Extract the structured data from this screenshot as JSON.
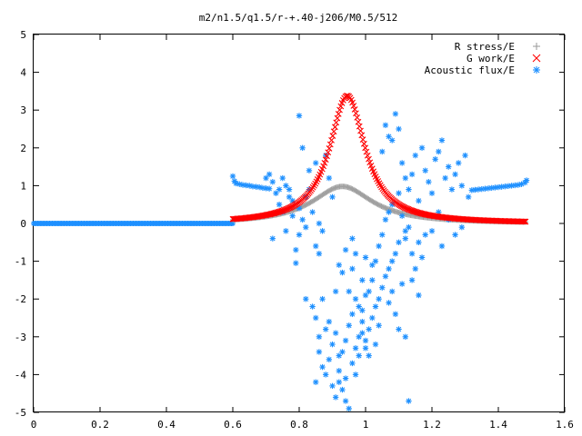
{
  "chart_data": {
    "type": "scatter",
    "title": "m2/n1.5/q1.5/r-+.40-j206/M0.5/512",
    "xlabel": "",
    "ylabel": "",
    "xlim": [
      0,
      1.6
    ],
    "ylim": [
      -5,
      5
    ],
    "x_ticks": [
      "0",
      "0.2",
      "0.4",
      "0.6",
      "0.8",
      "1",
      "1.2",
      "1.4",
      "1.6"
    ],
    "y_ticks": [
      "5",
      "4",
      "3",
      "2",
      "1",
      "0",
      "-1",
      "-2",
      "-3",
      "-4",
      "-5"
    ],
    "grid": false,
    "legend_position": "top-right",
    "series": [
      {
        "name": "R stress/E",
        "marker": "+",
        "color": "#a0a0a0",
        "model": {
          "kind": "lorentzian",
          "x_range": [
            0.6,
            1.485
          ],
          "center": 0.93,
          "amplitude": 0.98,
          "width": 0.11,
          "baseline": 0.0
        }
      },
      {
        "name": "G work/E",
        "marker": "x",
        "color": "#ff0000",
        "model": {
          "kind": "lorentzian",
          "x_range": [
            0.6,
            1.485
          ],
          "center": 0.945,
          "amplitude": 3.38,
          "width": 0.065,
          "baseline": 0.0
        }
      },
      {
        "name": "Acoustic flux/E",
        "marker": "*",
        "color": "#1e90ff",
        "zero_segment": [
          0.0,
          0.6
        ],
        "left_wing": [
          [
            0.6,
            1.25
          ],
          [
            0.605,
            1.12
          ],
          [
            0.61,
            1.06
          ],
          [
            0.62,
            1.04
          ],
          [
            0.63,
            1.02
          ],
          [
            0.64,
            1.01
          ],
          [
            0.65,
            1.0
          ],
          [
            0.66,
            0.98
          ],
          [
            0.67,
            0.97
          ],
          [
            0.68,
            0.96
          ],
          [
            0.69,
            0.94
          ],
          [
            0.7,
            0.93
          ],
          [
            0.71,
            0.92
          ]
        ],
        "right_wing": [
          [
            1.32,
            0.88
          ],
          [
            1.33,
            0.89
          ],
          [
            1.34,
            0.9
          ],
          [
            1.35,
            0.91
          ],
          [
            1.36,
            0.92
          ],
          [
            1.37,
            0.93
          ],
          [
            1.38,
            0.94
          ],
          [
            1.39,
            0.95
          ],
          [
            1.4,
            0.96
          ],
          [
            1.41,
            0.97
          ],
          [
            1.42,
            0.98
          ],
          [
            1.43,
            0.99
          ],
          [
            1.44,
            1.0
          ],
          [
            1.45,
            1.01
          ],
          [
            1.46,
            1.02
          ],
          [
            1.47,
            1.04
          ],
          [
            1.48,
            1.08
          ],
          [
            1.485,
            1.14
          ]
        ],
        "points": [
          [
            0.7,
            1.2
          ],
          [
            0.71,
            1.3
          ],
          [
            0.72,
            1.1
          ],
          [
            0.73,
            0.8
          ],
          [
            0.74,
            0.5
          ],
          [
            0.75,
            0.3
          ],
          [
            0.72,
            -0.4
          ],
          [
            0.76,
            1.0
          ],
          [
            0.77,
            0.9
          ],
          [
            0.78,
            0.6
          ],
          [
            0.8,
            0.4
          ],
          [
            0.82,
            0.7
          ],
          [
            0.78,
            0.2
          ],
          [
            0.79,
            -0.7
          ],
          [
            0.81,
            0.1
          ],
          [
            0.76,
            -0.2
          ],
          [
            0.79,
            -1.05
          ],
          [
            0.8,
            2.85
          ],
          [
            0.81,
            2.0
          ],
          [
            0.83,
            1.4
          ],
          [
            0.85,
            1.6
          ],
          [
            0.84,
            0.3
          ],
          [
            0.86,
            0.0
          ],
          [
            0.85,
            -0.6
          ],
          [
            0.87,
            -0.2
          ],
          [
            0.86,
            -0.8
          ],
          [
            0.88,
            1.8
          ],
          [
            0.89,
            1.2
          ],
          [
            0.9,
            0.7
          ],
          [
            0.82,
            -2.0
          ],
          [
            0.84,
            -2.2
          ],
          [
            0.85,
            -2.5
          ],
          [
            0.87,
            -2.0
          ],
          [
            0.86,
            -3.0
          ],
          [
            0.88,
            -2.8
          ],
          [
            0.89,
            -2.6
          ],
          [
            0.9,
            -3.2
          ],
          [
            0.91,
            -2.9
          ],
          [
            0.92,
            -3.5
          ],
          [
            0.93,
            -3.4
          ],
          [
            0.94,
            -3.1
          ],
          [
            0.95,
            -2.7
          ],
          [
            0.86,
            -3.4
          ],
          [
            0.87,
            -3.8
          ],
          [
            0.88,
            -4.0
          ],
          [
            0.9,
            -4.3
          ],
          [
            0.91,
            -4.6
          ],
          [
            0.92,
            -4.2
          ],
          [
            0.93,
            -4.4
          ],
          [
            0.94,
            -4.7
          ],
          [
            0.95,
            -4.9
          ],
          [
            0.92,
            -3.9
          ],
          [
            0.94,
            -4.1
          ],
          [
            0.89,
            -3.6
          ],
          [
            0.85,
            -4.2
          ],
          [
            0.97,
            -3.3
          ],
          [
            0.98,
            -3.0
          ],
          [
            0.99,
            -2.9
          ],
          [
            1.0,
            -3.1
          ],
          [
            1.01,
            -2.8
          ],
          [
            1.02,
            -2.5
          ],
          [
            1.03,
            -2.2
          ],
          [
            1.04,
            -2.0
          ],
          [
            1.05,
            -1.7
          ],
          [
            1.06,
            -1.4
          ],
          [
            1.07,
            -1.2
          ],
          [
            1.08,
            -1.0
          ],
          [
            1.09,
            -0.8
          ],
          [
            1.1,
            -0.5
          ],
          [
            0.98,
            -2.2
          ],
          [
            0.99,
            -2.6
          ],
          [
            1.0,
            -1.9
          ],
          [
            1.02,
            -1.5
          ],
          [
            1.03,
            -1.0
          ],
          [
            1.04,
            -0.6
          ],
          [
            1.05,
            -0.3
          ],
          [
            1.06,
            0.1
          ],
          [
            1.07,
            0.3
          ],
          [
            1.08,
            0.5
          ],
          [
            1.1,
            0.8
          ],
          [
            1.11,
            0.2
          ],
          [
            1.12,
            -0.2
          ],
          [
            0.96,
            -3.7
          ],
          [
            0.97,
            -4.0
          ],
          [
            0.98,
            -3.5
          ],
          [
            1.0,
            -3.3
          ],
          [
            0.96,
            -2.4
          ],
          [
            0.97,
            -2.0
          ],
          [
            0.99,
            -2.3
          ],
          [
            1.01,
            -1.8
          ],
          [
            0.95,
            -1.8
          ],
          [
            0.93,
            -1.3
          ],
          [
            0.96,
            -1.2
          ],
          [
            0.99,
            -1.5
          ],
          [
            1.06,
            2.6
          ],
          [
            1.07,
            2.3
          ],
          [
            1.09,
            2.9
          ],
          [
            1.1,
            2.5
          ],
          [
            1.05,
            1.9
          ],
          [
            1.08,
            2.2
          ],
          [
            1.11,
            1.6
          ],
          [
            1.12,
            1.2
          ],
          [
            1.13,
            0.9
          ],
          [
            1.14,
            1.3
          ],
          [
            1.15,
            1.8
          ],
          [
            1.16,
            0.6
          ],
          [
            1.17,
            2.0
          ],
          [
            1.18,
            1.4
          ],
          [
            1.19,
            1.1
          ],
          [
            1.2,
            0.8
          ],
          [
            1.21,
            1.7
          ],
          [
            1.22,
            1.9
          ],
          [
            1.23,
            2.2
          ],
          [
            1.24,
            1.2
          ],
          [
            1.25,
            1.5
          ],
          [
            1.26,
            0.9
          ],
          [
            1.27,
            1.3
          ],
          [
            1.28,
            1.6
          ],
          [
            1.29,
            1.0
          ],
          [
            1.3,
            1.8
          ],
          [
            1.31,
            0.7
          ],
          [
            1.12,
            -0.4
          ],
          [
            1.14,
            -0.8
          ],
          [
            1.15,
            -1.2
          ],
          [
            1.16,
            -0.5
          ],
          [
            1.13,
            -0.1
          ],
          [
            1.17,
            -0.9
          ],
          [
            1.18,
            -0.3
          ],
          [
            1.2,
            -0.2
          ],
          [
            1.22,
            0.3
          ],
          [
            1.23,
            -0.6
          ],
          [
            1.25,
            0.1
          ],
          [
            1.27,
            -0.3
          ],
          [
            1.29,
            -0.1
          ],
          [
            1.16,
            -1.9
          ],
          [
            1.14,
            -1.5
          ],
          [
            1.1,
            -2.8
          ],
          [
            1.12,
            -3.0
          ],
          [
            1.13,
            -4.7
          ],
          [
            1.11,
            -1.6
          ],
          [
            1.09,
            -2.4
          ],
          [
            1.08,
            -1.8
          ],
          [
            1.07,
            -2.1
          ],
          [
            1.04,
            -2.7
          ],
          [
            1.03,
            -3.2
          ],
          [
            1.01,
            -3.5
          ],
          [
            0.75,
            1.2
          ],
          [
            0.77,
            0.7
          ],
          [
            0.74,
            0.9
          ],
          [
            0.83,
            0.9
          ],
          [
            0.8,
            -0.3
          ],
          [
            0.82,
            -0.1
          ],
          [
            0.96,
            -0.4
          ],
          [
            0.97,
            -0.8
          ],
          [
            1.0,
            -0.9
          ],
          [
            1.02,
            -1.1
          ],
          [
            0.91,
            -1.8
          ],
          [
            0.92,
            -1.1
          ],
          [
            0.94,
            -0.7
          ]
        ]
      }
    ]
  }
}
